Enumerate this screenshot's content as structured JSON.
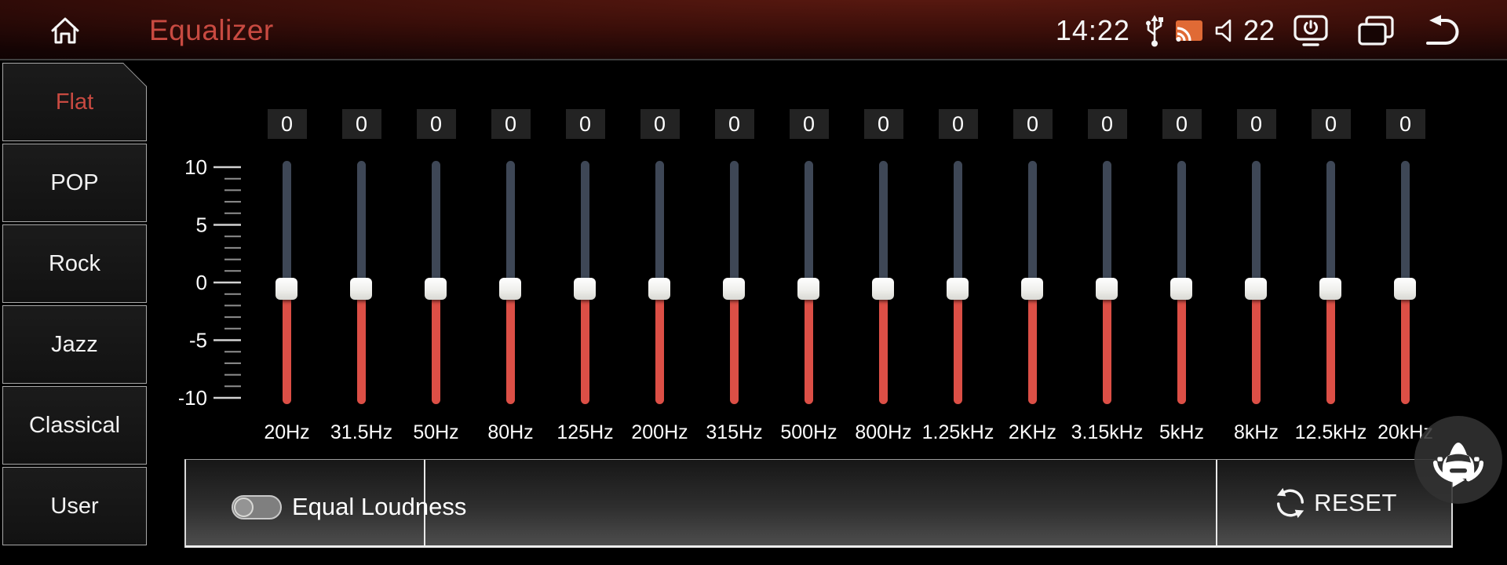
{
  "colors": {
    "accent": "#c84a41",
    "slider_red": "#dc4f46",
    "slider_gray": "#3e4756",
    "cast_orange": "#e06a35",
    "value_box_bg": "#232323",
    "footer_top": "#171717",
    "footer_bottom": "#4d4d4d"
  },
  "header": {
    "title": "Equalizer",
    "time": "14:22",
    "volume_level": "22",
    "icons": {
      "home": "home-icon",
      "usb": "usb-icon",
      "cast": "cast-icon",
      "volume": "volume-icon",
      "screen_power": "screen-power-icon",
      "recents": "recents-icon",
      "back": "back-icon"
    }
  },
  "sidebar": {
    "items": [
      {
        "label": "Flat",
        "selected": true
      },
      {
        "label": "POP",
        "selected": false
      },
      {
        "label": "Rock",
        "selected": false
      },
      {
        "label": "Jazz",
        "selected": false
      },
      {
        "label": "Classical",
        "selected": false
      },
      {
        "label": "User",
        "selected": false
      }
    ]
  },
  "equalizer": {
    "scale": {
      "max": 10,
      "min": -10,
      "minor_step": 1,
      "major_step": 5,
      "major_labels": [
        "10",
        "5",
        "0",
        "-5",
        "-10"
      ]
    },
    "bands": [
      {
        "freq": "20Hz",
        "value": "0"
      },
      {
        "freq": "31.5Hz",
        "value": "0"
      },
      {
        "freq": "50Hz",
        "value": "0"
      },
      {
        "freq": "80Hz",
        "value": "0"
      },
      {
        "freq": "125Hz",
        "value": "0"
      },
      {
        "freq": "200Hz",
        "value": "0"
      },
      {
        "freq": "315Hz",
        "value": "0"
      },
      {
        "freq": "500Hz",
        "value": "0"
      },
      {
        "freq": "800Hz",
        "value": "0"
      },
      {
        "freq": "1.25kHz",
        "value": "0"
      },
      {
        "freq": "2KHz",
        "value": "0"
      },
      {
        "freq": "3.15kHz",
        "value": "0"
      },
      {
        "freq": "5kHz",
        "value": "0"
      },
      {
        "freq": "8kHz",
        "value": "0"
      },
      {
        "freq": "12.5kHz",
        "value": "0"
      },
      {
        "freq": "20kHz",
        "value": "0"
      }
    ]
  },
  "footer": {
    "equal_loudness_label": "Equal Loudness",
    "equal_loudness_on": false,
    "reset_label": "RESET"
  }
}
